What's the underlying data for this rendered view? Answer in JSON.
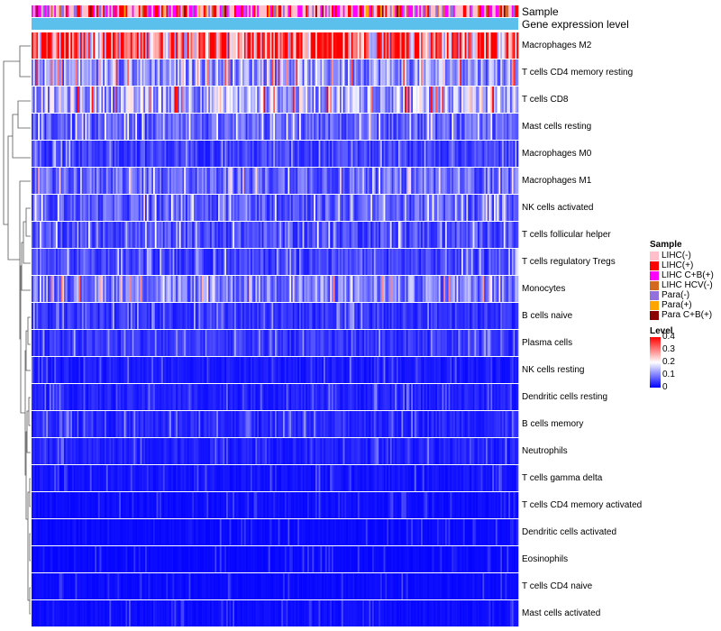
{
  "chart_data": {
    "type": "heatmap",
    "annotation_tracks": [
      "Sample",
      "Gene expression level"
    ],
    "rows": [
      {
        "label": "Macrophages M2",
        "mean": 0.3
      },
      {
        "label": "T cells CD4 memory resting",
        "mean": 0.12
      },
      {
        "label": "T cells CD8",
        "mean": 0.14
      },
      {
        "label": "Mast cells resting",
        "mean": 0.07
      },
      {
        "label": "Macrophages M0",
        "mean": 0.05
      },
      {
        "label": "Macrophages M1",
        "mean": 0.08
      },
      {
        "label": "NK cells activated",
        "mean": 0.07
      },
      {
        "label": "T cells follicular helper",
        "mean": 0.06
      },
      {
        "label": "T cells regulatory  Tregs",
        "mean": 0.05
      },
      {
        "label": "Monocytes",
        "mean": 0.1
      },
      {
        "label": "B cells naive",
        "mean": 0.04
      },
      {
        "label": "Plasma cells",
        "mean": 0.04
      },
      {
        "label": "NK cells resting",
        "mean": 0.02
      },
      {
        "label": "Dendritic cells resting",
        "mean": 0.025
      },
      {
        "label": "B cells memory",
        "mean": 0.03
      },
      {
        "label": "Neutrophils",
        "mean": 0.025
      },
      {
        "label": "T cells gamma delta",
        "mean": 0.015
      },
      {
        "label": "T cells CD4 memory activated",
        "mean": 0.01
      },
      {
        "label": "Dendritic cells activated",
        "mean": 0.008
      },
      {
        "label": "Eosinophils",
        "mean": 0.006
      },
      {
        "label": "T cells CD4 naive",
        "mean": 0.008
      },
      {
        "label": "Mast cells activated",
        "mean": 0.01
      }
    ],
    "legend_sample": {
      "title": "Sample",
      "items": [
        {
          "label": "LIHC(-)",
          "color": "#ffc0cb"
        },
        {
          "label": "LIHC(+)",
          "color": "#ff0000"
        },
        {
          "label": "LIHC C+B(+)",
          "color": "#ff00ff"
        },
        {
          "label": "LIHC HCV(-)",
          "color": "#d2691e"
        },
        {
          "label": "Para(-)",
          "color": "#9370db"
        },
        {
          "label": "Para(+)",
          "color": "#ffa500"
        },
        {
          "label": "Para C+B(+)",
          "color": "#8b0000"
        }
      ]
    },
    "legend_level": {
      "title": "Level",
      "ticks": [
        "0.4",
        "0.3",
        "0.2",
        "0.1",
        "0"
      ],
      "range": [
        0,
        0.4
      ],
      "colors": [
        "#0000ff",
        "#ffffff",
        "#ff0000"
      ]
    },
    "gene_expression_color": "#5bc0eb"
  }
}
